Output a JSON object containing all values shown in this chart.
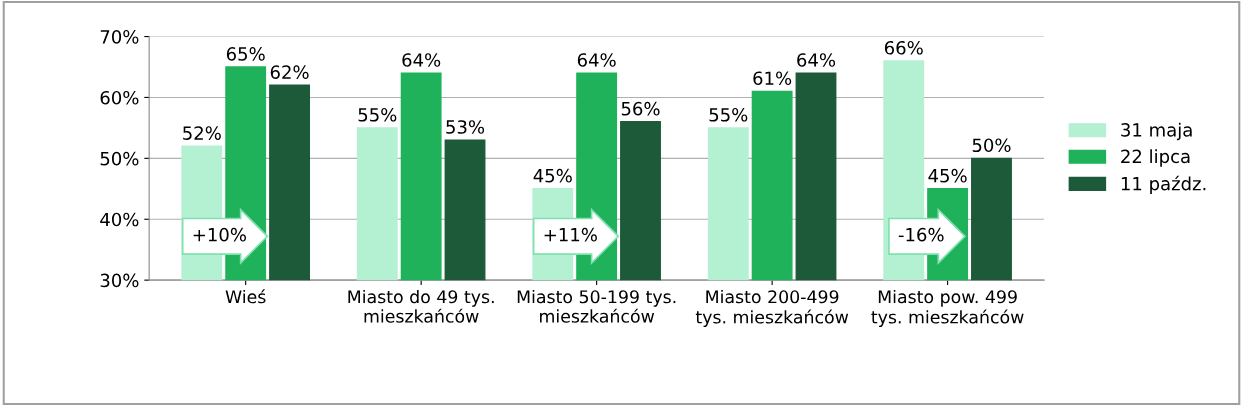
{
  "chart_data": {
    "type": "bar",
    "categories": [
      "Wieś",
      "Miasto do 49 tys. mieszkańców",
      "Miasto 50-199 tys. mieszkańców",
      "Miasto 200-499 tys. mieszkańców",
      "Miasto pow. 499 tys. mieszkańców"
    ],
    "series": [
      {
        "name": "31 maja",
        "color": "#b4f0d2",
        "values": [
          52,
          55,
          45,
          55,
          66
        ],
        "value_labels": [
          "52%",
          "55%",
          "45%",
          "55%",
          "66%"
        ]
      },
      {
        "name": "22 lipca",
        "color": "#1fb25a",
        "values": [
          65,
          64,
          64,
          61,
          45
        ],
        "value_labels": [
          "65%",
          "64%",
          "64%",
          "61%",
          "45%"
        ]
      },
      {
        "name": "11 paźdz.",
        "color": "#1d5a3a",
        "values": [
          62,
          53,
          56,
          64,
          50
        ],
        "value_labels": [
          "62%",
          "53%",
          "56%",
          "64%",
          "50%"
        ]
      }
    ],
    "ylim": [
      30,
      70
    ],
    "yticks": [
      {
        "value": 30,
        "label": "30%"
      },
      {
        "value": 40,
        "label": "40%"
      },
      {
        "value": 50,
        "label": "50%"
      },
      {
        "value": 60,
        "label": "60%"
      },
      {
        "value": 70,
        "label": "70%"
      }
    ],
    "grid": "y",
    "legend": "right",
    "annotations": [
      "+10%",
      "+11%",
      "-16%"
    ]
  }
}
